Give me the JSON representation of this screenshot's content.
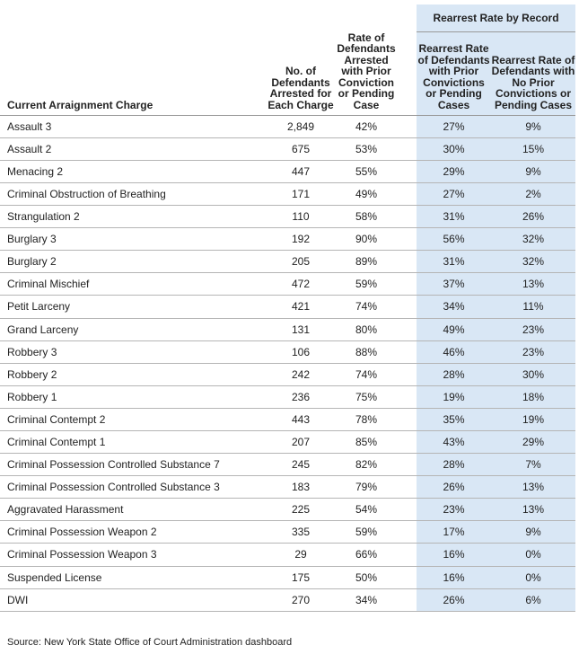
{
  "header": {
    "group": "Rearrest Rate by Record",
    "columns": [
      "Current Arraignment Charge",
      "No. of Defendants Arrested for Each Charge",
      "Rate of Defendants Arrested with Prior Conviction or Pending Case",
      "Rearrest Rate of Defendants with Prior Convictions or Pending Cases",
      "Rearrest Rate of Defendants with No Prior Convictions or Pending Cases"
    ]
  },
  "rows": [
    [
      "Assault 3",
      "2,849",
      "42%",
      "27%",
      "9%"
    ],
    [
      "Assault 2",
      "675",
      "53%",
      "30%",
      "15%"
    ],
    [
      "Menacing 2",
      "447",
      "55%",
      "29%",
      "9%"
    ],
    [
      "Criminal Obstruction of Breathing",
      "171",
      "49%",
      "27%",
      "2%"
    ],
    [
      "Strangulation 2",
      "110",
      "58%",
      "31%",
      "26%"
    ],
    [
      "Burglary 3",
      "192",
      "90%",
      "56%",
      "32%"
    ],
    [
      "Burglary 2",
      "205",
      "89%",
      "31%",
      "32%"
    ],
    [
      "Criminal Mischief",
      "472",
      "59%",
      "37%",
      "13%"
    ],
    [
      "Petit Larceny",
      "421",
      "74%",
      "34%",
      "11%"
    ],
    [
      "Grand Larceny",
      "131",
      "80%",
      "49%",
      "23%"
    ],
    [
      "Robbery 3",
      "106",
      "88%",
      "46%",
      "23%"
    ],
    [
      "Robbery 2",
      "242",
      "74%",
      "28%",
      "30%"
    ],
    [
      "Robbery 1",
      "236",
      "75%",
      "19%",
      "18%"
    ],
    [
      "Criminal Contempt 2",
      "443",
      "78%",
      "35%",
      "19%"
    ],
    [
      "Criminal Contempt 1",
      "207",
      "85%",
      "43%",
      "29%"
    ],
    [
      "Criminal Possession Controlled Substance 7",
      "245",
      "82%",
      "28%",
      "7%"
    ],
    [
      "Criminal Possession Controlled Substance 3",
      "183",
      "79%",
      "26%",
      "13%"
    ],
    [
      "Aggravated Harassment",
      "225",
      "54%",
      "23%",
      "13%"
    ],
    [
      "Criminal Possession Weapon 2",
      "335",
      "59%",
      "17%",
      "9%"
    ],
    [
      "Criminal Possession Weapon 3",
      "29",
      "66%",
      "16%",
      "0%"
    ],
    [
      "Suspended License",
      "175",
      "50%",
      "16%",
      "0%"
    ],
    [
      "DWI",
      "270",
      "34%",
      "26%",
      "6%"
    ]
  ],
  "source": "Source: New York State Office of Court Administration dashboard",
  "colors": {
    "highlight": "#d9e7f5"
  }
}
